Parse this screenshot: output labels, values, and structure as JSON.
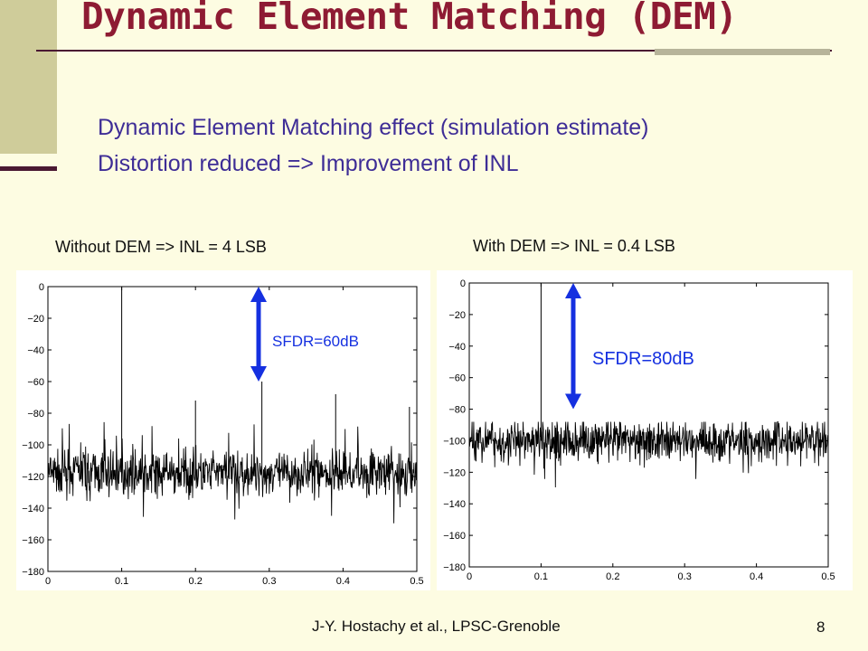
{
  "slide": {
    "title": "Dynamic Element Matching (DEM)",
    "bullets": [
      "Dynamic Element Matching effect (simulation estimate)",
      "Distortion reduced => Improvement of INL"
    ],
    "footer": "J-Y. Hostachy et al., LPSC-Grenoble",
    "page_number": "8"
  },
  "colors": {
    "title": "#8E1B33",
    "bullet_text": "#3E2D96",
    "arrow": "#1530E0",
    "background": "#FDFCE2"
  },
  "chart_data": [
    {
      "type": "line",
      "caption": "Without DEM => INL = 4 LSB",
      "annotation": "SFDR=60dB",
      "x_range": [
        0,
        0.5
      ],
      "y_range": [
        -180,
        0
      ],
      "x_ticks": [
        "0",
        "0.1",
        "0.2",
        "0.3",
        "0.4",
        "0.5"
      ],
      "y_ticks": [
        "0",
        "−20",
        "−40",
        "−60",
        "−80",
        "−100",
        "−120",
        "−140",
        "−160",
        "−180"
      ],
      "noise_floor_db": -118,
      "noise_spread_db": [
        -150,
        -85
      ],
      "peaks": [
        {
          "x": 0.1,
          "y": 0
        },
        {
          "x": 0.29,
          "y": -60
        },
        {
          "x": 0.39,
          "y": -68
        },
        {
          "x": 0.2,
          "y": -72
        },
        {
          "x": 0.49,
          "y": -76
        }
      ],
      "sfdr_arrow_db": [
        0,
        -60
      ],
      "grid": false
    },
    {
      "type": "line",
      "caption": "With DEM => INL = 0.4 LSB",
      "annotation": "SFDR=80dB",
      "x_range": [
        0,
        0.5
      ],
      "y_range": [
        -180,
        0
      ],
      "x_ticks": [
        "0",
        "0.1",
        "0.2",
        "0.3",
        "0.4",
        "0.5"
      ],
      "y_ticks": [
        "0",
        "−20",
        "−40",
        "−60",
        "−80",
        "−100",
        "−120",
        "−140",
        "−160",
        "−180"
      ],
      "noise_floor_db": -100,
      "noise_spread_db": [
        -130,
        -88
      ],
      "peaks": [
        {
          "x": 0.1,
          "y": 0
        }
      ],
      "sfdr_arrow_db": [
        0,
        -80
      ],
      "grid": false
    }
  ]
}
